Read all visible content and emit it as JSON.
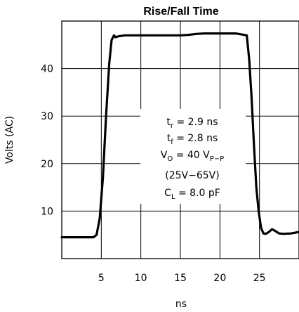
{
  "chart_data": {
    "type": "line",
    "title": "Rise/Fall Time",
    "xlabel": "ns",
    "ylabel": "Volts (AC)",
    "xlim": [
      0,
      30
    ],
    "ylim": [
      0,
      50
    ],
    "x_ticks": [
      5,
      10,
      15,
      20,
      25
    ],
    "y_ticks": [
      10,
      20,
      30,
      40
    ],
    "grid": true,
    "series": [
      {
        "name": "",
        "x": [
          0,
          4.0,
          4.4,
          4.8,
          5.2,
          5.6,
          6.0,
          6.3,
          6.6,
          6.8,
          7.2,
          8,
          10,
          12,
          14,
          15,
          16,
          17,
          18,
          20,
          22,
          23.4,
          23.7,
          24.0,
          24.3,
          24.6,
          24.9,
          25.2,
          25.5,
          25.8,
          26.2,
          26.6,
          27.0,
          27.5,
          28.0,
          29.0,
          30
        ],
        "y": [
          4.5,
          4.5,
          5.0,
          8.5,
          17,
          30,
          41,
          46,
          47.0,
          46.6,
          46.8,
          47.0,
          47.0,
          47.0,
          47.0,
          47.0,
          47.1,
          47.3,
          47.4,
          47.4,
          47.4,
          47.0,
          42,
          34,
          24,
          15,
          10,
          6.5,
          5.3,
          5.2,
          5.6,
          6.2,
          5.8,
          5.3,
          5.2,
          5.3,
          5.6
        ]
      }
    ]
  },
  "annotation": {
    "tr_main": "t",
    "tr_sub": "r",
    "tr_rest": " = 2.9 ns",
    "tf_main": "t",
    "tf_sub": "f",
    "tf_rest": " = 2.8 ns",
    "vo_main": "V",
    "vo_sub": "O",
    "vo_rest": " = 40 V",
    "vo_unit_sub": "P−P",
    "range": "(25V−65V)",
    "cl_main": "C",
    "cl_sub": "L",
    "cl_rest": " = 8.0 pF"
  }
}
